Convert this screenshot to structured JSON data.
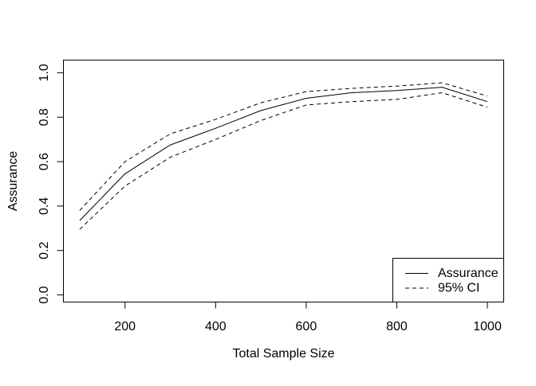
{
  "figure": {
    "background": "#ffffff",
    "foreground": "#000000"
  },
  "chart_data": {
    "type": "line",
    "title": "",
    "xlabel": "Total Sample Size",
    "ylabel": "Assurance",
    "xlim": [
      64,
      1036
    ],
    "ylim": [
      -0.032,
      1.057
    ],
    "grid": false,
    "x": [
      100,
      200,
      300,
      400,
      500,
      600,
      700,
      800,
      900,
      1000
    ],
    "series": [
      {
        "name": "Assurance",
        "style": "solid",
        "values": [
          0.335,
          0.545,
          0.675,
          0.75,
          0.83,
          0.885,
          0.91,
          0.92,
          0.935,
          0.87
        ]
      },
      {
        "name": "95% CI upper",
        "style": "dashed",
        "values": [
          0.38,
          0.6,
          0.725,
          0.79,
          0.865,
          0.915,
          0.93,
          0.94,
          0.955,
          0.895
        ]
      },
      {
        "name": "95% CI lower",
        "style": "dashed",
        "values": [
          0.295,
          0.49,
          0.62,
          0.7,
          0.785,
          0.855,
          0.87,
          0.88,
          0.91,
          0.845
        ]
      }
    ],
    "x_ticks": {
      "values": [
        200,
        400,
        600,
        800,
        1000
      ],
      "labels": [
        "200",
        "400",
        "600",
        "800",
        "1000"
      ]
    },
    "y_ticks": {
      "values": [
        0,
        0.2,
        0.4,
        0.6,
        0.8,
        1
      ],
      "labels": [
        "0.0",
        "0.2",
        "0.4",
        "0.6",
        "0.8",
        "1.0"
      ]
    },
    "legend": {
      "position": "bottomright",
      "entries": [
        {
          "label": "Assurance",
          "line": "solid"
        },
        {
          "label": "95% CI",
          "line": "dashed"
        }
      ]
    }
  }
}
